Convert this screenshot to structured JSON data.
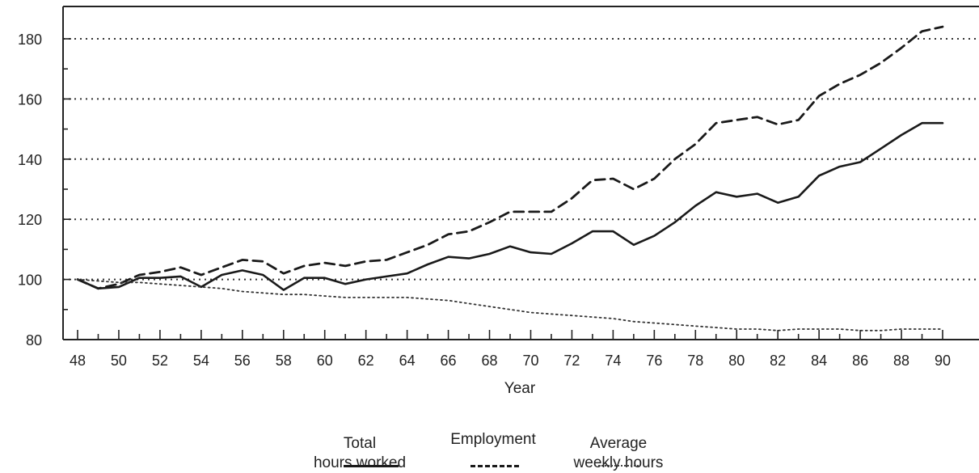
{
  "chart_data": {
    "type": "line",
    "title": "",
    "xlabel": "Year",
    "ylabel": "",
    "xlim": [
      48,
      90
    ],
    "ylim": [
      80,
      185
    ],
    "x_ticks": [
      "48",
      "50",
      "52",
      "54",
      "56",
      "58",
      "60",
      "62",
      "64",
      "66",
      "68",
      "70",
      "72",
      "74",
      "76",
      "78",
      "80",
      "82",
      "84",
      "86",
      "88",
      "90"
    ],
    "y_ticks": [
      "80",
      "100",
      "120",
      "140",
      "160",
      "180"
    ],
    "grid": "horizontal dotted at 100,120,140,160,180",
    "legend_position": "bottom-center",
    "x": [
      48,
      49,
      50,
      51,
      52,
      53,
      54,
      55,
      56,
      57,
      58,
      59,
      60,
      61,
      62,
      63,
      64,
      65,
      66,
      67,
      68,
      69,
      70,
      71,
      72,
      73,
      74,
      75,
      76,
      77,
      78,
      79,
      80,
      81,
      82,
      83,
      84,
      85,
      86,
      87,
      88,
      89,
      90
    ],
    "series": [
      {
        "name": "Total hours worked",
        "style": "solid",
        "color": "#1a1a1a",
        "values": [
          100,
          97,
          97.5,
          100.5,
          100.5,
          101,
          97.5,
          101.5,
          103,
          101.5,
          96.5,
          100.5,
          100.5,
          98.5,
          100,
          101,
          102,
          105,
          107.5,
          107,
          108.5,
          111,
          109,
          108.5,
          112,
          116,
          116,
          111.5,
          114.5,
          119,
          124.5,
          129,
          127.5,
          128.5,
          125.5,
          127.5,
          134.5,
          137.5,
          139,
          143.5,
          148,
          152,
          152
        ]
      },
      {
        "name": "Employment",
        "style": "dashed",
        "color": "#1a1a1a",
        "values": [
          100,
          97,
          98.5,
          101.5,
          102.5,
          104,
          101.5,
          104,
          106.5,
          106,
          102,
          104.5,
          105.5,
          104.5,
          106,
          106.5,
          109,
          111.5,
          115,
          116,
          119,
          122.5,
          122.5,
          122.5,
          127,
          133,
          133.5,
          130,
          133.5,
          140,
          145,
          152,
          153,
          154,
          151.5,
          153,
          161,
          165,
          168,
          172,
          177,
          182.5,
          184
        ]
      },
      {
        "name": "Average weekly hours",
        "style": "dotted",
        "color": "#333333",
        "values": [
          100,
          99.5,
          99,
          99,
          98.5,
          98,
          97.5,
          97,
          96,
          95.5,
          95,
          95,
          94.5,
          94,
          94,
          94,
          94,
          93.5,
          93,
          92,
          91,
          90,
          89,
          88.5,
          88,
          87.5,
          87,
          86,
          85.5,
          85,
          84.5,
          84,
          83.5,
          83.5,
          83,
          83.5,
          83.5,
          83.5,
          83,
          83,
          83.5,
          83.5,
          83.5
        ]
      }
    ]
  },
  "legend": {
    "items": [
      {
        "label": "Total\nhours worked"
      },
      {
        "label": "Employment"
      },
      {
        "label": "Average\nweekly hours"
      }
    ]
  }
}
